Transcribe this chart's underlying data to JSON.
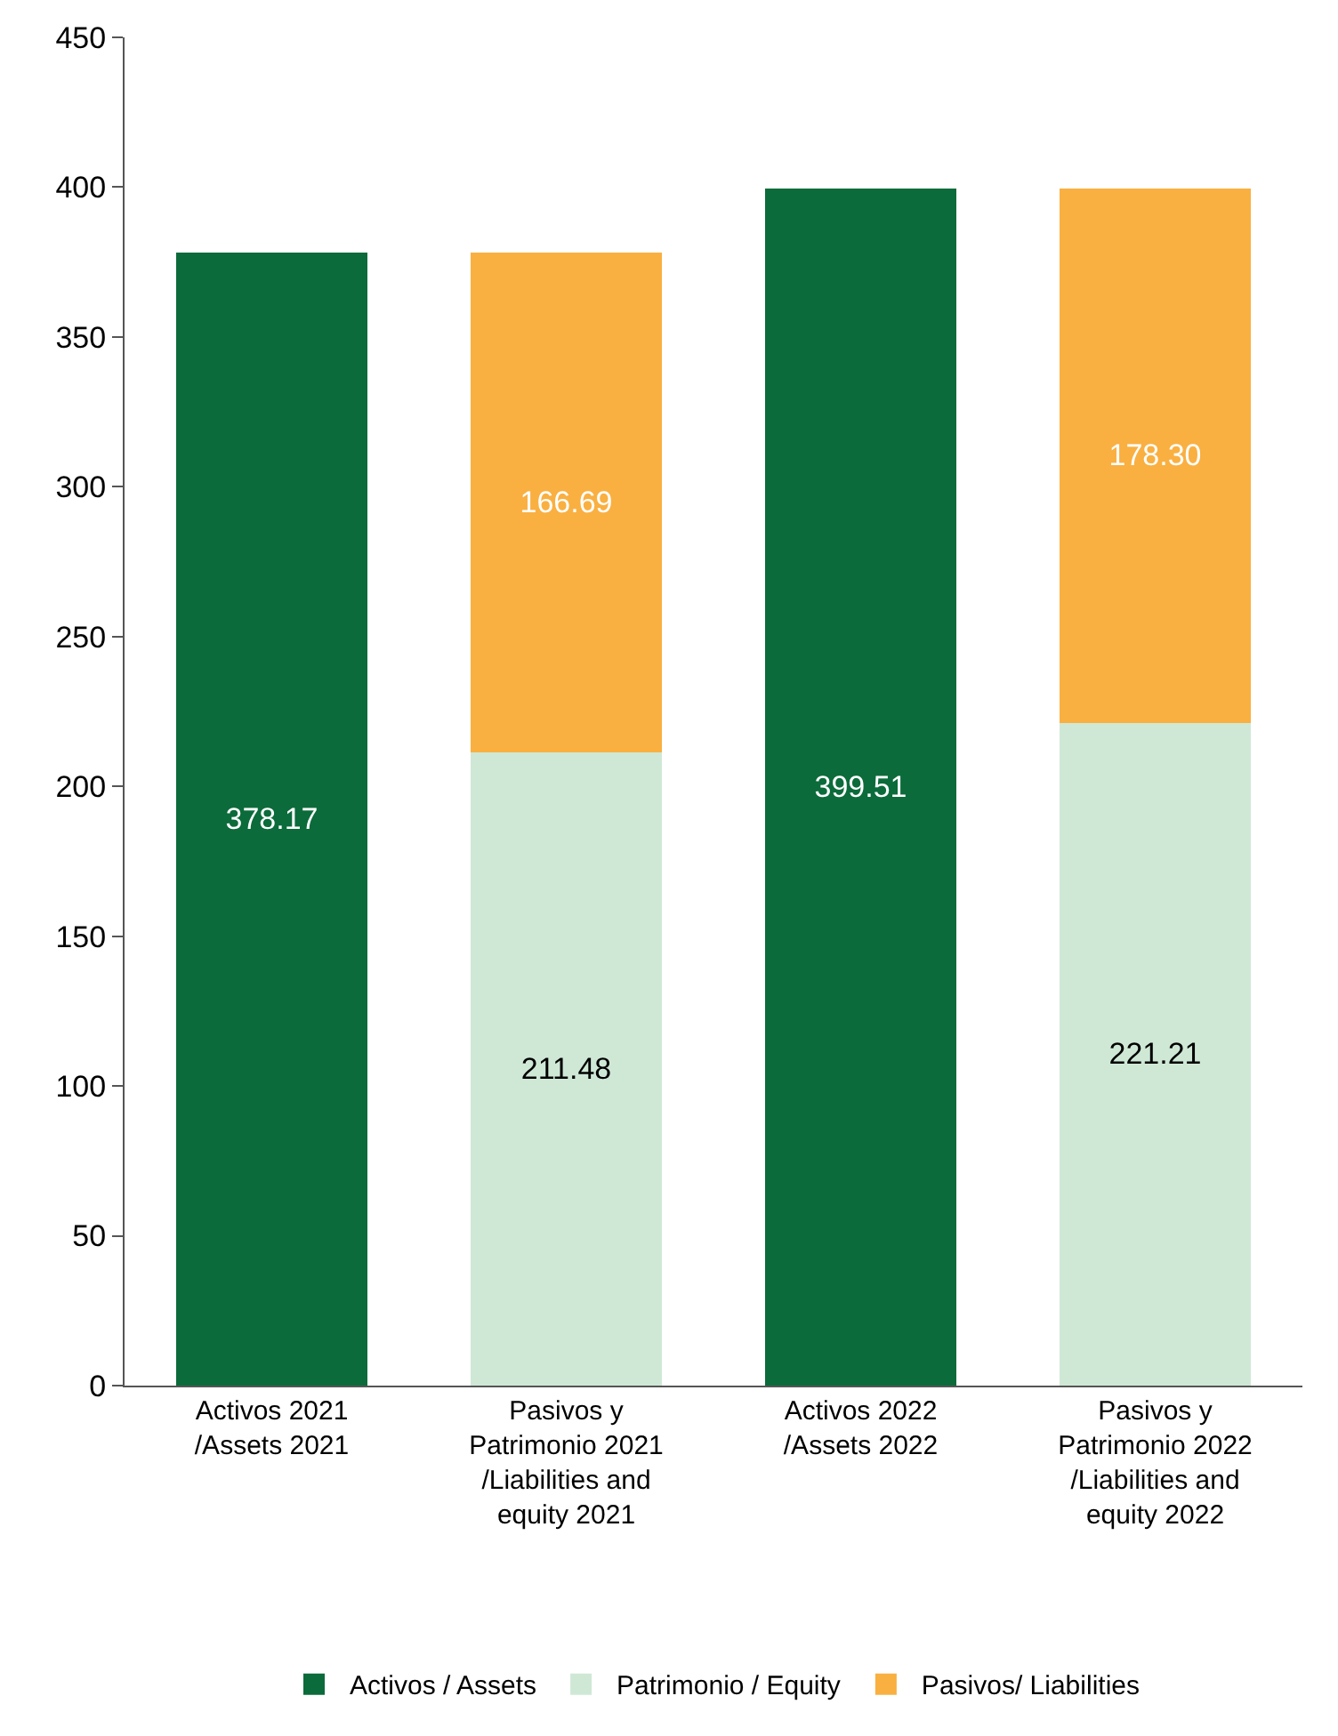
{
  "chart_data": {
    "type": "bar",
    "stacked": true,
    "categories": [
      "Activos 2021\n/Assets 2021",
      "Pasivos y\nPatrimonio 2021\n/Liabilities and\nequity 2021",
      "Activos 2022\n/Assets 2022",
      "Pasivos y\nPatrimonio 2022\n/Liabilities and\nequity 2022"
    ],
    "series": [
      {
        "name": "Activos / Assets",
        "color": "#0b6b3a",
        "values": [
          378.17,
          null,
          399.51,
          null
        ],
        "value_labels": [
          "378.17",
          null,
          "399.51",
          null
        ]
      },
      {
        "name": "Patrimonio / Equity",
        "color": "#cfe8d6",
        "values": [
          null,
          211.48,
          null,
          221.21
        ],
        "value_labels": [
          null,
          "211.48",
          null,
          "221.21"
        ]
      },
      {
        "name": "Pasivos/ Liabilities",
        "color": "#f9b041",
        "values": [
          null,
          166.69,
          null,
          178.3
        ],
        "value_labels": [
          null,
          "166.69",
          null,
          "178.30"
        ]
      }
    ],
    "ylim": [
      0,
      450
    ],
    "yticks": [
      0,
      50,
      100,
      150,
      200,
      250,
      300,
      350,
      400,
      450
    ],
    "legend": "bottom"
  }
}
